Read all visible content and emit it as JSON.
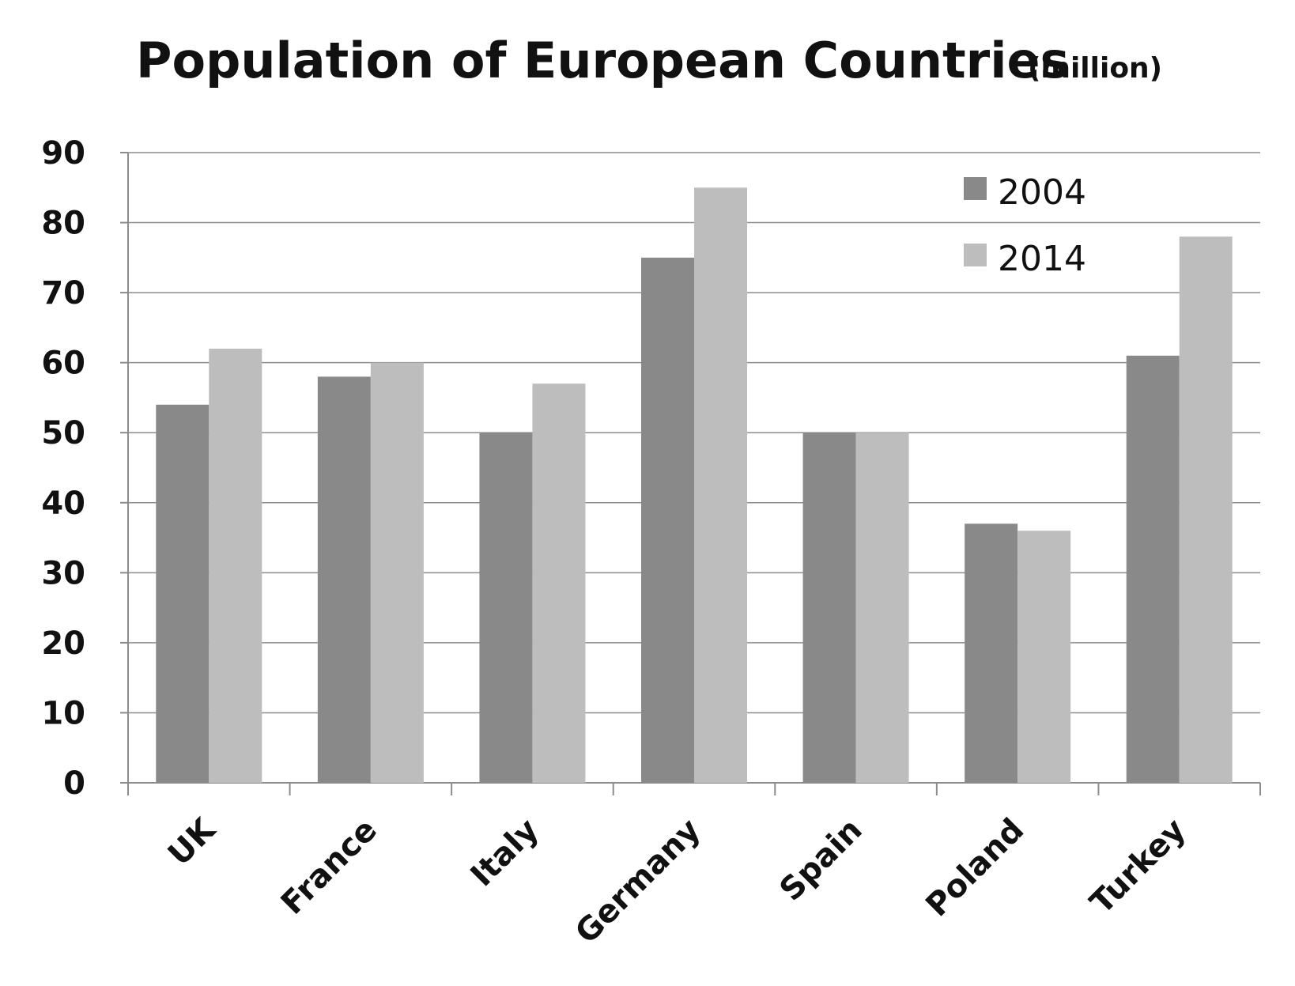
{
  "chart_data": {
    "type": "bar",
    "title": "Population of European Countries",
    "title_unit": "(million)",
    "categories": [
      "UK",
      "France",
      "Italy",
      "Germany",
      "Spain",
      "Poland",
      "Turkey"
    ],
    "series": [
      {
        "name": "2004",
        "color": "#898989",
        "values": [
          54,
          58,
          50,
          75,
          50,
          37,
          61
        ]
      },
      {
        "name": "2014",
        "color": "#bdbdbd",
        "values": [
          62,
          60,
          57,
          85,
          50,
          36,
          78
        ]
      }
    ],
    "ylim": [
      0,
      90
    ],
    "yticks": [
      0,
      10,
      20,
      30,
      40,
      50,
      60,
      70,
      80,
      90
    ],
    "grid": true,
    "legend_position": "top-right",
    "xlabel": "",
    "ylabel": ""
  }
}
